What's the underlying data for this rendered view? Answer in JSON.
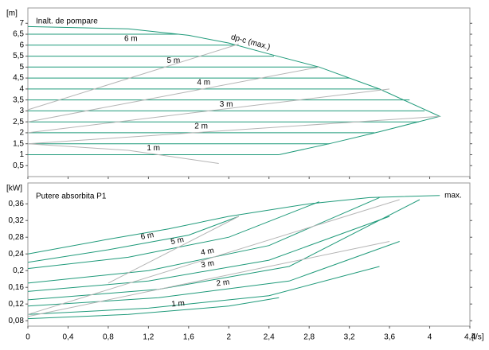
{
  "chart_data": [
    {
      "type": "line",
      "title": "Inalt. de pompare",
      "y_unit": "[m]",
      "xlim": [
        0,
        4.4
      ],
      "ylim": [
        0,
        7.7
      ],
      "yticks": [
        {
          "value": 0.5,
          "label": "0,5"
        },
        1,
        {
          "value": 1.5,
          "label": "1,5"
        },
        2,
        {
          "value": 2.5,
          "label": "2,5"
        },
        3,
        {
          "value": 3.5,
          "label": "3,5"
        },
        4,
        {
          "value": 4.5,
          "label": "4,5"
        },
        5,
        {
          "value": 5.5,
          "label": "5,5"
        },
        6,
        {
          "value": 6.5,
          "label": "6,5"
        },
        7
      ],
      "series": [
        {
          "name": "dp-c (max.)",
          "color": "#1f9a7a",
          "x": [
            0,
            1.0,
            1.6,
            2.0,
            2.4,
            2.9,
            3.5,
            4.1,
            3.5,
            3.0,
            2.5
          ],
          "values": [
            6.85,
            6.75,
            6.45,
            6.1,
            5.6,
            5.0,
            4.0,
            2.75,
            2.05,
            1.5,
            1.0
          ]
        },
        {
          "color": "#1f9a7a",
          "x": [
            0,
            1.5
          ],
          "values": [
            6.5,
            6.5
          ]
        },
        {
          "name": "6 m",
          "color": "#1f9a7a",
          "x": [
            0,
            2.05
          ],
          "values": [
            6,
            6
          ]
        },
        {
          "color": "#1f9a7a",
          "x": [
            0,
            2.45
          ],
          "values": [
            5.5,
            5.5
          ]
        },
        {
          "name": "5 m",
          "color": "#1f9a7a",
          "x": [
            0,
            2.9
          ],
          "values": [
            5,
            5
          ]
        },
        {
          "color": "#1f9a7a",
          "x": [
            0,
            3.2
          ],
          "values": [
            4.5,
            4.5
          ]
        },
        {
          "name": "4 m",
          "color": "#1f9a7a",
          "x": [
            0,
            3.5
          ],
          "values": [
            4,
            4
          ]
        },
        {
          "color": "#1f9a7a",
          "x": [
            0,
            3.8
          ],
          "values": [
            3.5,
            3.5
          ]
        },
        {
          "name": "3 m",
          "color": "#1f9a7a",
          "x": [
            0,
            3.95
          ],
          "values": [
            3,
            3
          ]
        },
        {
          "color": "#1f9a7a",
          "x": [
            0,
            3.89
          ],
          "values": [
            2.5,
            2.5
          ]
        },
        {
          "name": "2 m",
          "color": "#1f9a7a",
          "x": [
            0,
            3.45
          ],
          "values": [
            2,
            2
          ]
        },
        {
          "color": "#1f9a7a",
          "x": [
            0,
            3.0
          ],
          "values": [
            1.5,
            1.5
          ]
        },
        {
          "name": "1 m",
          "color": "#1f9a7a",
          "x": [
            0,
            2.5
          ],
          "values": [
            1,
            1
          ]
        },
        {
          "color": "#b5b5b5",
          "x": [
            0,
            2.1
          ],
          "values": [
            3.05,
            6.05
          ]
        },
        {
          "color": "#b5b5b5",
          "x": [
            0,
            2.9
          ],
          "values": [
            2.5,
            5.0
          ]
        },
        {
          "color": "#b5b5b5",
          "x": [
            0,
            3.6
          ],
          "values": [
            2.0,
            4.0
          ]
        },
        {
          "color": "#b5b5b5",
          "x": [
            0,
            4.1
          ],
          "values": [
            1.5,
            2.75
          ]
        },
        {
          "color": "#b5b5b5",
          "x": [
            0,
            1.0,
            1.9
          ],
          "values": [
            1.5,
            1.2,
            0.6
          ]
        }
      ]
    },
    {
      "type": "line",
      "title": "Putere absorbita P1",
      "y_unit": "[kW]",
      "x_unit": "[l/s]",
      "xlim": [
        0,
        4.4
      ],
      "ylim": [
        0.067,
        0.41
      ],
      "xticks": [
        0,
        {
          "value": 0.4,
          "label": "0,4"
        },
        {
          "value": 0.8,
          "label": "0,8"
        },
        {
          "value": 1.2,
          "label": "1,2"
        },
        {
          "value": 1.6,
          "label": "1,6"
        },
        2,
        {
          "value": 2.4,
          "label": "2,4"
        },
        {
          "value": 2.8,
          "label": "2,8"
        },
        {
          "value": 3.2,
          "label": "3,2"
        },
        {
          "value": 3.6,
          "label": "3,6"
        },
        4,
        {
          "value": 4.4,
          "label": "4,4"
        }
      ],
      "yticks": [
        {
          "value": 0.08,
          "label": "0,08"
        },
        {
          "value": 0.12,
          "label": "0,12"
        },
        {
          "value": 0.16,
          "label": "0,16"
        },
        {
          "value": 0.2,
          "label": "0,2"
        },
        {
          "value": 0.24,
          "label": "0,24"
        },
        {
          "value": 0.28,
          "label": "0,28"
        },
        {
          "value": 0.32,
          "label": "0,32"
        },
        {
          "value": 0.36,
          "label": "0,36"
        }
      ],
      "series": [
        {
          "name": "max.",
          "label_position": "end",
          "color": "#1f9a7a",
          "x": [
            0,
            0.8,
            1.4,
            2.0,
            2.8,
            3.4,
            4.1
          ],
          "values": [
            0.24,
            0.275,
            0.3,
            0.33,
            0.36,
            0.375,
            0.38
          ]
        },
        {
          "name": "6 m",
          "color": "#1f9a7a",
          "x": [
            0,
            0.8,
            1.6,
            2.1
          ],
          "values": [
            0.22,
            0.25,
            0.285,
            0.33
          ]
        },
        {
          "name": "5 m",
          "color": "#1f9a7a",
          "x": [
            0,
            1.0,
            2.0,
            2.9
          ],
          "values": [
            0.205,
            0.232,
            0.28,
            0.365
          ]
        },
        {
          "name": "4 m",
          "color": "#1f9a7a",
          "x": [
            0,
            1.2,
            2.4,
            3.5
          ],
          "values": [
            0.17,
            0.2,
            0.26,
            0.375
          ]
        },
        {
          "name": "3 m",
          "color": "#1f9a7a",
          "x": [
            0,
            1.2,
            2.4,
            3.6
          ],
          "values": [
            0.15,
            0.175,
            0.225,
            0.33
          ]
        },
        {
          "color": "#1f9a7a",
          "x": [
            0,
            1.3,
            2.6,
            3.9
          ],
          "values": [
            0.13,
            0.155,
            0.21,
            0.37
          ]
        },
        {
          "name": "2 m",
          "color": "#1f9a7a",
          "x": [
            0,
            1.3,
            2.6,
            3.7
          ],
          "values": [
            0.115,
            0.135,
            0.175,
            0.27
          ]
        },
        {
          "color": "#1f9a7a",
          "x": [
            0,
            1.2,
            2.4,
            3.5
          ],
          "values": [
            0.095,
            0.11,
            0.14,
            0.21
          ]
        },
        {
          "name": "1 m",
          "color": "#1f9a7a",
          "x": [
            0,
            1.0,
            2.0,
            2.5
          ],
          "values": [
            0.085,
            0.095,
            0.115,
            0.135
          ]
        },
        {
          "color": "#b5b5b5",
          "x": [
            0,
            3.6
          ],
          "values": [
            0.09,
            0.27
          ]
        },
        {
          "color": "#b5b5b5",
          "x": [
            0,
            3.7
          ],
          "values": [
            0.095,
            0.37
          ]
        },
        {
          "color": "#b5b5b5",
          "x": [
            0.8,
            2.1
          ],
          "values": [
            0.17,
            0.33
          ]
        }
      ]
    }
  ]
}
